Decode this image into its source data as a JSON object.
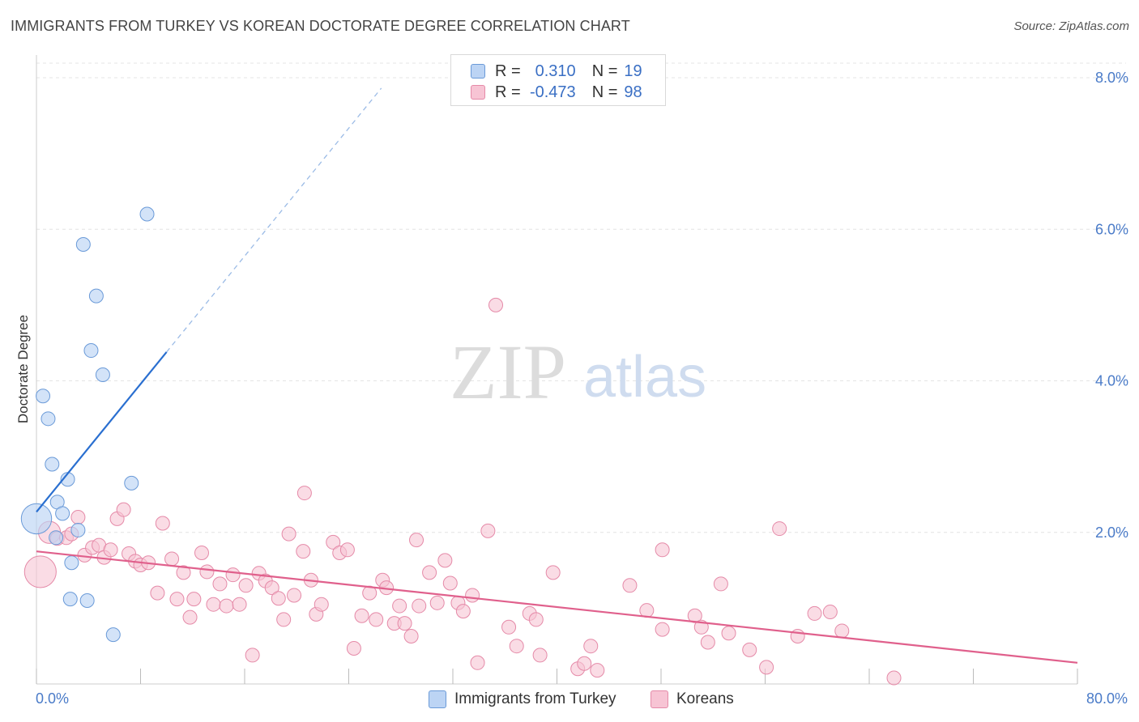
{
  "title": "IMMIGRANTS FROM TURKEY VS KOREAN DOCTORATE DEGREE CORRELATION CHART",
  "source": "Source: ZipAtlas.com",
  "watermark": {
    "zip": "ZIP",
    "atlas": "atlas"
  },
  "colors": {
    "blue_fill": "#bcd4f4",
    "blue_stroke": "#6a9ad8",
    "blue_line": "#2a6fd0",
    "pink_fill": "#f7c4d4",
    "pink_stroke": "#e58aa8",
    "pink_line": "#e0608c",
    "grid": "#e4e4e4",
    "tick_text": "#4a7bc8"
  },
  "legend": {
    "rows": [
      {
        "r_label": "R =",
        "r_value": "0.310",
        "n_label": "N =",
        "n_value": "19"
      },
      {
        "r_label": "R =",
        "r_value": "-0.473",
        "n_label": "N =",
        "n_value": "98"
      }
    ]
  },
  "chart_data": {
    "type": "scatter",
    "title": "IMMIGRANTS FROM TURKEY VS KOREAN DOCTORATE DEGREE CORRELATION CHART",
    "xlabel": "",
    "ylabel": "Doctorate Degree",
    "xlim": [
      0,
      80
    ],
    "ylim": [
      0,
      8.4
    ],
    "x_tick_labels": [
      "0.0%",
      "80.0%"
    ],
    "y_ticks": [
      2,
      4,
      6,
      8
    ],
    "y_tick_labels": [
      "2.0%",
      "4.0%",
      "6.0%",
      "8.0%"
    ],
    "grid": true,
    "legend_position": "top-center",
    "series": [
      {
        "name": "Immigrants from Turkey",
        "r": 0.31,
        "n": 19,
        "points": [
          {
            "x": 0.0,
            "y": 2.18,
            "s": 2.2
          },
          {
            "x": 0.5,
            "y": 3.8
          },
          {
            "x": 0.9,
            "y": 3.5
          },
          {
            "x": 1.2,
            "y": 2.9
          },
          {
            "x": 1.6,
            "y": 2.4
          },
          {
            "x": 2.0,
            "y": 2.25
          },
          {
            "x": 1.5,
            "y": 1.93
          },
          {
            "x": 2.4,
            "y": 2.7
          },
          {
            "x": 2.7,
            "y": 1.6
          },
          {
            "x": 2.6,
            "y": 1.12
          },
          {
            "x": 3.2,
            "y": 2.03
          },
          {
            "x": 3.9,
            "y": 1.1
          },
          {
            "x": 4.2,
            "y": 4.4
          },
          {
            "x": 3.6,
            "y": 5.8
          },
          {
            "x": 4.6,
            "y": 5.12
          },
          {
            "x": 5.1,
            "y": 4.08
          },
          {
            "x": 5.9,
            "y": 0.65
          },
          {
            "x": 7.3,
            "y": 2.65
          },
          {
            "x": 8.5,
            "y": 6.2
          }
        ],
        "trend": {
          "x0": 0.0,
          "y0": 2.27,
          "x1": 10.0,
          "y1": 4.38,
          "dash_to_x": 26.5
        }
      },
      {
        "name": "Koreans",
        "r": -0.473,
        "n": 98,
        "points": [
          {
            "x": 0.3,
            "y": 1.48,
            "s": 2.3
          },
          {
            "x": 1.0,
            "y": 2.0,
            "s": 1.6
          },
          {
            "x": 1.6,
            "y": 1.92
          },
          {
            "x": 2.3,
            "y": 1.93
          },
          {
            "x": 2.7,
            "y": 1.98
          },
          {
            "x": 3.2,
            "y": 2.2
          },
          {
            "x": 3.7,
            "y": 1.7
          },
          {
            "x": 4.3,
            "y": 1.8
          },
          {
            "x": 4.8,
            "y": 1.83
          },
          {
            "x": 5.2,
            "y": 1.67
          },
          {
            "x": 5.7,
            "y": 1.77
          },
          {
            "x": 6.2,
            "y": 2.18
          },
          {
            "x": 6.7,
            "y": 2.3
          },
          {
            "x": 7.1,
            "y": 1.72
          },
          {
            "x": 7.6,
            "y": 1.62
          },
          {
            "x": 8.0,
            "y": 1.57
          },
          {
            "x": 8.6,
            "y": 1.6
          },
          {
            "x": 9.3,
            "y": 1.2
          },
          {
            "x": 9.7,
            "y": 2.12
          },
          {
            "x": 10.4,
            "y": 1.65
          },
          {
            "x": 10.8,
            "y": 1.12
          },
          {
            "x": 11.3,
            "y": 1.47
          },
          {
            "x": 11.8,
            "y": 0.88
          },
          {
            "x": 12.1,
            "y": 1.12
          },
          {
            "x": 12.7,
            "y": 1.73
          },
          {
            "x": 13.1,
            "y": 1.48
          },
          {
            "x": 13.6,
            "y": 1.05
          },
          {
            "x": 14.1,
            "y": 1.32
          },
          {
            "x": 14.6,
            "y": 1.03
          },
          {
            "x": 15.1,
            "y": 1.44
          },
          {
            "x": 15.6,
            "y": 1.05
          },
          {
            "x": 16.1,
            "y": 1.3
          },
          {
            "x": 16.6,
            "y": 0.38
          },
          {
            "x": 17.1,
            "y": 1.46
          },
          {
            "x": 17.6,
            "y": 1.36
          },
          {
            "x": 18.1,
            "y": 1.27
          },
          {
            "x": 18.6,
            "y": 1.13
          },
          {
            "x": 19.0,
            "y": 0.85
          },
          {
            "x": 19.4,
            "y": 1.98
          },
          {
            "x": 19.8,
            "y": 1.17
          },
          {
            "x": 20.6,
            "y": 2.52
          },
          {
            "x": 20.5,
            "y": 1.75
          },
          {
            "x": 21.1,
            "y": 1.37
          },
          {
            "x": 21.5,
            "y": 0.92
          },
          {
            "x": 21.9,
            "y": 1.05
          },
          {
            "x": 22.8,
            "y": 1.87
          },
          {
            "x": 23.3,
            "y": 1.73
          },
          {
            "x": 23.9,
            "y": 1.77
          },
          {
            "x": 24.4,
            "y": 0.47
          },
          {
            "x": 25.0,
            "y": 0.9
          },
          {
            "x": 25.6,
            "y": 1.2
          },
          {
            "x": 26.1,
            "y": 0.85
          },
          {
            "x": 26.6,
            "y": 1.37
          },
          {
            "x": 26.9,
            "y": 1.27
          },
          {
            "x": 27.5,
            "y": 0.8
          },
          {
            "x": 27.9,
            "y": 1.03
          },
          {
            "x": 28.3,
            "y": 0.8
          },
          {
            "x": 28.8,
            "y": 0.63
          },
          {
            "x": 29.2,
            "y": 1.9
          },
          {
            "x": 29.4,
            "y": 1.03
          },
          {
            "x": 30.2,
            "y": 1.47
          },
          {
            "x": 30.8,
            "y": 1.07
          },
          {
            "x": 31.4,
            "y": 1.63
          },
          {
            "x": 31.8,
            "y": 1.33
          },
          {
            "x": 32.4,
            "y": 1.07
          },
          {
            "x": 32.8,
            "y": 0.96
          },
          {
            "x": 33.5,
            "y": 1.17
          },
          {
            "x": 33.9,
            "y": 0.28
          },
          {
            "x": 34.7,
            "y": 2.02
          },
          {
            "x": 35.3,
            "y": 5.0
          },
          {
            "x": 36.3,
            "y": 0.75
          },
          {
            "x": 36.9,
            "y": 0.5
          },
          {
            "x": 37.9,
            "y": 0.93
          },
          {
            "x": 38.4,
            "y": 0.85
          },
          {
            "x": 38.7,
            "y": 0.38
          },
          {
            "x": 39.7,
            "y": 1.47
          },
          {
            "x": 41.6,
            "y": 0.2
          },
          {
            "x": 42.1,
            "y": 0.27
          },
          {
            "x": 42.6,
            "y": 0.5
          },
          {
            "x": 43.1,
            "y": 0.18
          },
          {
            "x": 45.6,
            "y": 1.3
          },
          {
            "x": 46.9,
            "y": 0.97
          },
          {
            "x": 48.1,
            "y": 0.72
          },
          {
            "x": 48.1,
            "y": 1.77
          },
          {
            "x": 50.6,
            "y": 0.9
          },
          {
            "x": 51.1,
            "y": 0.75
          },
          {
            "x": 51.6,
            "y": 0.55
          },
          {
            "x": 52.6,
            "y": 1.32
          },
          {
            "x": 53.2,
            "y": 0.67
          },
          {
            "x": 54.8,
            "y": 0.45
          },
          {
            "x": 56.1,
            "y": 0.22
          },
          {
            "x": 57.1,
            "y": 2.05
          },
          {
            "x": 58.5,
            "y": 0.63
          },
          {
            "x": 59.8,
            "y": 0.93
          },
          {
            "x": 61.0,
            "y": 0.95
          },
          {
            "x": 61.9,
            "y": 0.7
          },
          {
            "x": 65.9,
            "y": 0.08
          }
        ],
        "trend": {
          "x0": 0.0,
          "y0": 1.75,
          "x1": 80.0,
          "y1": 0.28
        }
      }
    ]
  }
}
